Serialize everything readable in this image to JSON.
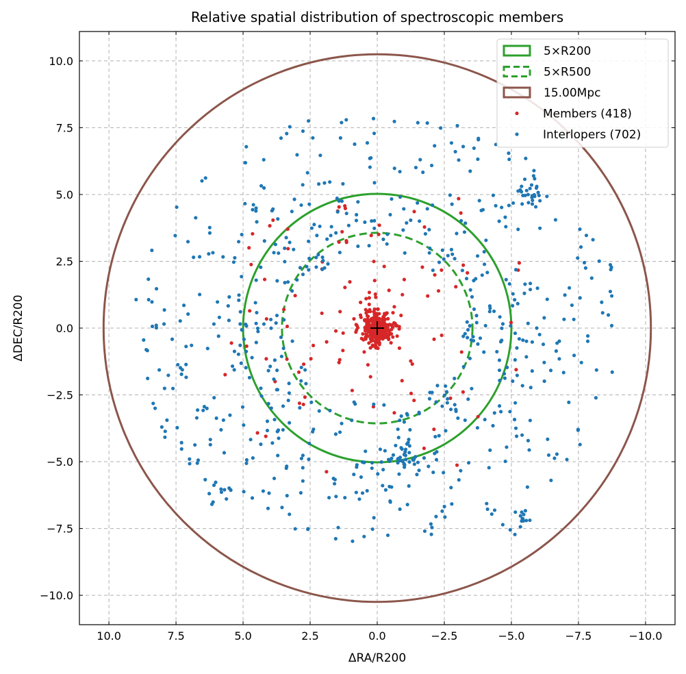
{
  "chart_data": {
    "type": "scatter",
    "title": "Relative spatial distribution of spectroscopic members",
    "xlabel": "ΔRA/R200",
    "ylabel": "ΔDEC/R200",
    "xlim": [
      11.1,
      -11.1
    ],
    "ylim": [
      -11.1,
      11.1
    ],
    "x_ticks": [
      10.0,
      7.5,
      5.0,
      2.5,
      0.0,
      -2.5,
      -5.0,
      -7.5,
      -10.0
    ],
    "x_tick_labels": [
      "10.0",
      "7.5",
      "5.0",
      "2.5",
      "0.0",
      "−2.5",
      "−5.0",
      "−7.5",
      "−10.0"
    ],
    "y_ticks": [
      10.0,
      7.5,
      5.0,
      2.5,
      0.0,
      -2.5,
      -5.0,
      -7.5,
      -10.0
    ],
    "y_tick_labels": [
      "10.0",
      "7.5",
      "5.0",
      "2.5",
      "0.0",
      "−2.5",
      "−5.0",
      "−7.5",
      "−10.0"
    ],
    "grid": true,
    "legend_position": "top-right",
    "center": [
      0,
      0
    ],
    "circles": [
      {
        "name": "5×R200",
        "radius": 5.0,
        "style": "solid",
        "color": "#2ca02c"
      },
      {
        "name": "5×R500",
        "radius": 3.55,
        "style": "dashed",
        "color": "#2ca02c"
      },
      {
        "name": "15.00Mpc",
        "radius": 10.2,
        "style": "solid",
        "color": "#8c564b"
      }
    ],
    "series": [
      {
        "name": "Members (418)",
        "color": "#d62728",
        "count": 418,
        "inner_count": 300,
        "inner_sigma": 0.28
      },
      {
        "name": "Interlopers (702)",
        "color": "#1f77b4",
        "count": 702,
        "clumps": [
          {
            "x": -1.0,
            "y": -4.9,
            "n": 40
          },
          {
            "x": -5.7,
            "y": 5.0,
            "n": 25
          },
          {
            "x": 5.8,
            "y": -6.2,
            "n": 12
          },
          {
            "x": -5.5,
            "y": -7.3,
            "n": 15
          }
        ]
      }
    ]
  }
}
